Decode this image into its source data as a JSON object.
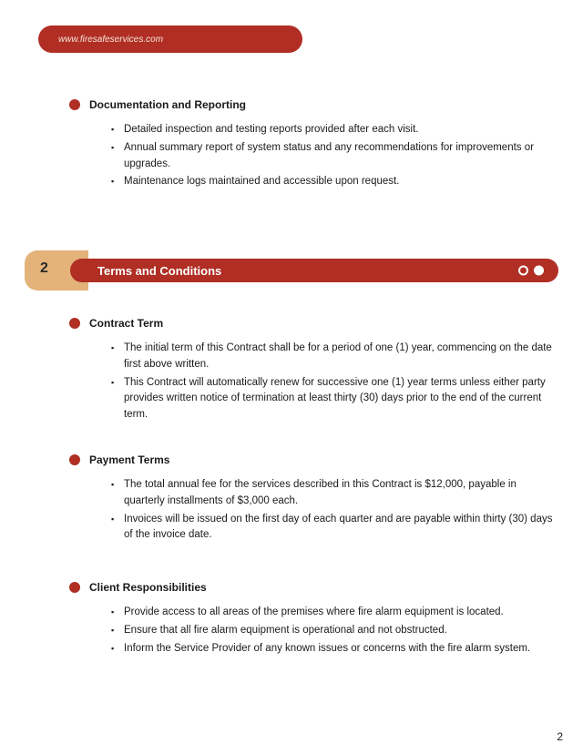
{
  "header": {
    "url": "www.firesafeservices.com"
  },
  "section1": {
    "title": "Documentation and Reporting",
    "items": [
      "Detailed inspection and testing reports provided after each visit.",
      "Annual summary report of system status and any recommendations for improvements or upgrades.",
      "Maintenance logs maintained and accessible upon request."
    ]
  },
  "bar": {
    "number": "2",
    "title": "Terms and Conditions"
  },
  "section2a": {
    "title": "Contract Term",
    "items": [
      "The initial term of this Contract shall be for a period of one (1) year, commencing on the date first above written.",
      "This Contract will automatically renew for successive one (1) year terms unless either party provides written notice of termination at least thirty (30) days prior to the end of the current term."
    ]
  },
  "section2b": {
    "title": "Payment Terms",
    "items": [
      "The total annual fee for the services described in this Contract is $12,000, payable in quarterly installments of $3,000 each.",
      "Invoices will be issued on the first day of each quarter and are payable within thirty (30) days of the invoice date."
    ]
  },
  "section2c": {
    "title": "Client Responsibilities",
    "items": [
      "Provide access to all areas of the premises where fire alarm equipment is located.",
      "Ensure that all fire alarm equipment is operational and not obstructed.",
      "Inform the Service Provider of any known issues or concerns with the fire alarm system."
    ]
  },
  "pageNumber": "2"
}
